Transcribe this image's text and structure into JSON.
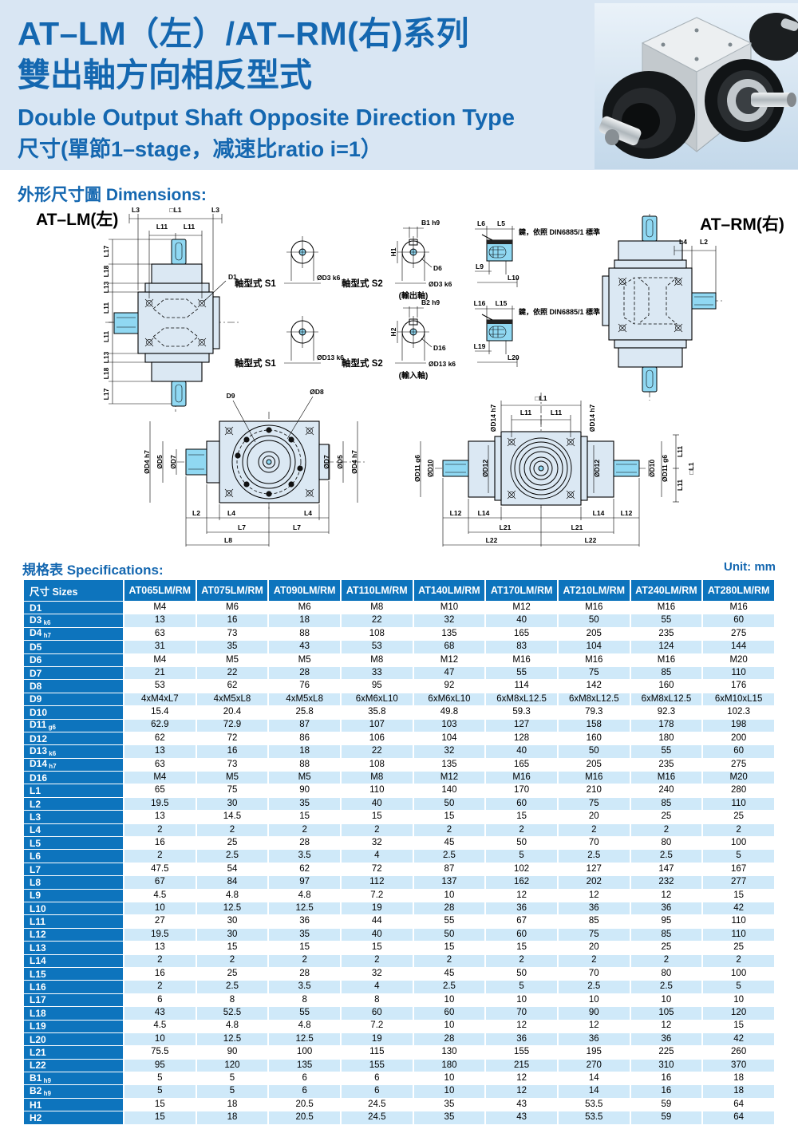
{
  "header": {
    "title_line1": "AT–LM（左）/AT–RM(右)系列",
    "title_line2": "雙出軸方向相反型式",
    "title_line3": "Double Output Shaft Opposite Direction Type",
    "title_line4": "尺寸(單節1–stage，减速比ratio i=1）"
  },
  "drawings": {
    "heading": "外形尺寸圖 Dimensions:",
    "at_lm": "AT–LM(左)",
    "at_rm": "AT–RM(右)",
    "shaft_type_s1": "軸型式 S1",
    "shaft_type_s2": "軸型式 S2",
    "output_shaft": "(輸出軸)",
    "input_shaft": "(輸入軸)",
    "key_note": "鍵，依照 DIN6885/1 標準",
    "dims": {
      "L1sq": "□L1",
      "L2": "L2",
      "L3": "L3",
      "L4": "L4",
      "L5": "L5",
      "L6": "L6",
      "L7": "L7",
      "L8": "L8",
      "L9": "L9",
      "L10": "L10",
      "L11": "L11",
      "L12": "L12",
      "L13": "L13",
      "L14": "L14",
      "L15": "L15",
      "L16": "L16",
      "L17": "L17",
      "L18": "L18",
      "L19": "L19",
      "L20": "L20",
      "L21": "L21",
      "L22": "L22",
      "D1": "D1",
      "D6": "D6",
      "D9": "D9",
      "D16": "D16",
      "B1": "B1 h9",
      "B2": "B2 h9",
      "H1": "H1",
      "H2": "H2",
      "oD3": "ØD3 k6",
      "oD4": "ØD4 h7",
      "oD5": "ØD5",
      "oD7": "ØD7",
      "oD8": "ØD8",
      "oD10": "ØD10",
      "oD11": "ØD11 g6",
      "oD12": "ØD12",
      "oD13": "ØD13 k6",
      "oD14": "ØD14 h7"
    }
  },
  "spec_table": {
    "heading": "規格表 Specifications:",
    "unit": "Unit: mm",
    "size_header": "尺寸 Sizes",
    "columns": [
      "AT065LM/RM",
      "AT075LM/RM",
      "AT090LM/RM",
      "AT110LM/RM",
      "AT140LM/RM",
      "AT170LM/RM",
      "AT210LM/RM",
      "AT240LM/RM",
      "AT280LM/RM"
    ],
    "rows": [
      {
        "label": "D1",
        "sub": "",
        "values": [
          "M4",
          "M6",
          "M6",
          "M8",
          "M10",
          "M12",
          "M16",
          "M16",
          "M16"
        ]
      },
      {
        "label": "D3",
        "sub": "k6",
        "values": [
          "13",
          "16",
          "18",
          "22",
          "32",
          "40",
          "50",
          "55",
          "60"
        ]
      },
      {
        "label": "D4",
        "sub": "h7",
        "values": [
          "63",
          "73",
          "88",
          "108",
          "135",
          "165",
          "205",
          "235",
          "275"
        ]
      },
      {
        "label": "D5",
        "sub": "",
        "values": [
          "31",
          "35",
          "43",
          "53",
          "68",
          "83",
          "104",
          "124",
          "144"
        ]
      },
      {
        "label": "D6",
        "sub": "",
        "values": [
          "M4",
          "M5",
          "M5",
          "M8",
          "M12",
          "M16",
          "M16",
          "M16",
          "M20"
        ]
      },
      {
        "label": "D7",
        "sub": "",
        "values": [
          "21",
          "22",
          "28",
          "33",
          "47",
          "55",
          "75",
          "85",
          "110"
        ]
      },
      {
        "label": "D8",
        "sub": "",
        "values": [
          "53",
          "62",
          "76",
          "95",
          "92",
          "114",
          "142",
          "160",
          "176"
        ]
      },
      {
        "label": "D9",
        "sub": "",
        "values": [
          "4xM4xL7",
          "4xM5xL8",
          "4xM5xL8",
          "6xM6xL10",
          "6xM6xL10",
          "6xM8xL12.5",
          "6xM8xL12.5",
          "6xM8xL12.5",
          "6xM10xL15"
        ]
      },
      {
        "label": "D10",
        "sub": "",
        "values": [
          "15.4",
          "20.4",
          "25.8",
          "35.8",
          "49.8",
          "59.3",
          "79.3",
          "92.3",
          "102.3"
        ]
      },
      {
        "label": "D11",
        "sub": "g6",
        "values": [
          "62.9",
          "72.9",
          "87",
          "107",
          "103",
          "127",
          "158",
          "178",
          "198"
        ]
      },
      {
        "label": "D12",
        "sub": "",
        "values": [
          "62",
          "72",
          "86",
          "106",
          "104",
          "128",
          "160",
          "180",
          "200"
        ]
      },
      {
        "label": "D13",
        "sub": "k6",
        "values": [
          "13",
          "16",
          "18",
          "22",
          "32",
          "40",
          "50",
          "55",
          "60"
        ]
      },
      {
        "label": "D14",
        "sub": "h7",
        "values": [
          "63",
          "73",
          "88",
          "108",
          "135",
          "165",
          "205",
          "235",
          "275"
        ]
      },
      {
        "label": "D16",
        "sub": "",
        "values": [
          "M4",
          "M5",
          "M5",
          "M8",
          "M12",
          "M16",
          "M16",
          "M16",
          "M20"
        ]
      },
      {
        "label": "L1",
        "sub": "",
        "values": [
          "65",
          "75",
          "90",
          "110",
          "140",
          "170",
          "210",
          "240",
          "280"
        ]
      },
      {
        "label": "L2",
        "sub": "",
        "values": [
          "19.5",
          "30",
          "35",
          "40",
          "50",
          "60",
          "75",
          "85",
          "110"
        ]
      },
      {
        "label": "L3",
        "sub": "",
        "values": [
          "13",
          "14.5",
          "15",
          "15",
          "15",
          "15",
          "20",
          "25",
          "25"
        ]
      },
      {
        "label": "L4",
        "sub": "",
        "values": [
          "2",
          "2",
          "2",
          "2",
          "2",
          "2",
          "2",
          "2",
          "2"
        ]
      },
      {
        "label": "L5",
        "sub": "",
        "values": [
          "16",
          "25",
          "28",
          "32",
          "45",
          "50",
          "70",
          "80",
          "100"
        ]
      },
      {
        "label": "L6",
        "sub": "",
        "values": [
          "2",
          "2.5",
          "3.5",
          "4",
          "2.5",
          "5",
          "2.5",
          "2.5",
          "5"
        ]
      },
      {
        "label": "L7",
        "sub": "",
        "values": [
          "47.5",
          "54",
          "62",
          "72",
          "87",
          "102",
          "127",
          "147",
          "167"
        ]
      },
      {
        "label": "L8",
        "sub": "",
        "values": [
          "67",
          "84",
          "97",
          "112",
          "137",
          "162",
          "202",
          "232",
          "277"
        ]
      },
      {
        "label": "L9",
        "sub": "",
        "values": [
          "4.5",
          "4.8",
          "4.8",
          "7.2",
          "10",
          "12",
          "12",
          "12",
          "15"
        ]
      },
      {
        "label": "L10",
        "sub": "",
        "values": [
          "10",
          "12.5",
          "12.5",
          "19",
          "28",
          "36",
          "36",
          "36",
          "42"
        ]
      },
      {
        "label": "L11",
        "sub": "",
        "values": [
          "27",
          "30",
          "36",
          "44",
          "55",
          "67",
          "85",
          "95",
          "110"
        ]
      },
      {
        "label": "L12",
        "sub": "",
        "values": [
          "19.5",
          "30",
          "35",
          "40",
          "50",
          "60",
          "75",
          "85",
          "110"
        ]
      },
      {
        "label": "L13",
        "sub": "",
        "values": [
          "13",
          "15",
          "15",
          "15",
          "15",
          "15",
          "20",
          "25",
          "25"
        ]
      },
      {
        "label": "L14",
        "sub": "",
        "values": [
          "2",
          "2",
          "2",
          "2",
          "2",
          "2",
          "2",
          "2",
          "2"
        ]
      },
      {
        "label": "L15",
        "sub": "",
        "values": [
          "16",
          "25",
          "28",
          "32",
          "45",
          "50",
          "70",
          "80",
          "100"
        ]
      },
      {
        "label": "L16",
        "sub": "",
        "values": [
          "2",
          "2.5",
          "3.5",
          "4",
          "2.5",
          "5",
          "2.5",
          "2.5",
          "5"
        ]
      },
      {
        "label": "L17",
        "sub": "",
        "values": [
          "6",
          "8",
          "8",
          "8",
          "10",
          "10",
          "10",
          "10",
          "10"
        ]
      },
      {
        "label": "L18",
        "sub": "",
        "values": [
          "43",
          "52.5",
          "55",
          "60",
          "60",
          "70",
          "90",
          "105",
          "120"
        ]
      },
      {
        "label": "L19",
        "sub": "",
        "values": [
          "4.5",
          "4.8",
          "4.8",
          "7.2",
          "10",
          "12",
          "12",
          "12",
          "15"
        ]
      },
      {
        "label": "L20",
        "sub": "",
        "values": [
          "10",
          "12.5",
          "12.5",
          "19",
          "28",
          "36",
          "36",
          "36",
          "42"
        ]
      },
      {
        "label": "L21",
        "sub": "",
        "values": [
          "75.5",
          "90",
          "100",
          "115",
          "130",
          "155",
          "195",
          "225",
          "260"
        ]
      },
      {
        "label": "L22",
        "sub": "",
        "values": [
          "95",
          "120",
          "135",
          "155",
          "180",
          "215",
          "270",
          "310",
          "370"
        ]
      },
      {
        "label": "B1",
        "sub": "h9",
        "values": [
          "5",
          "5",
          "6",
          "6",
          "10",
          "12",
          "14",
          "16",
          "18"
        ]
      },
      {
        "label": "B2",
        "sub": "h9",
        "values": [
          "5",
          "5",
          "6",
          "6",
          "10",
          "12",
          "14",
          "16",
          "18"
        ]
      },
      {
        "label": "H1",
        "sub": "",
        "values": [
          "15",
          "18",
          "20.5",
          "24.5",
          "35",
          "43",
          "53.5",
          "59",
          "64"
        ]
      },
      {
        "label": "H2",
        "sub": "",
        "values": [
          "15",
          "18",
          "20.5",
          "24.5",
          "35",
          "43",
          "53.5",
          "59",
          "64"
        ]
      }
    ]
  }
}
